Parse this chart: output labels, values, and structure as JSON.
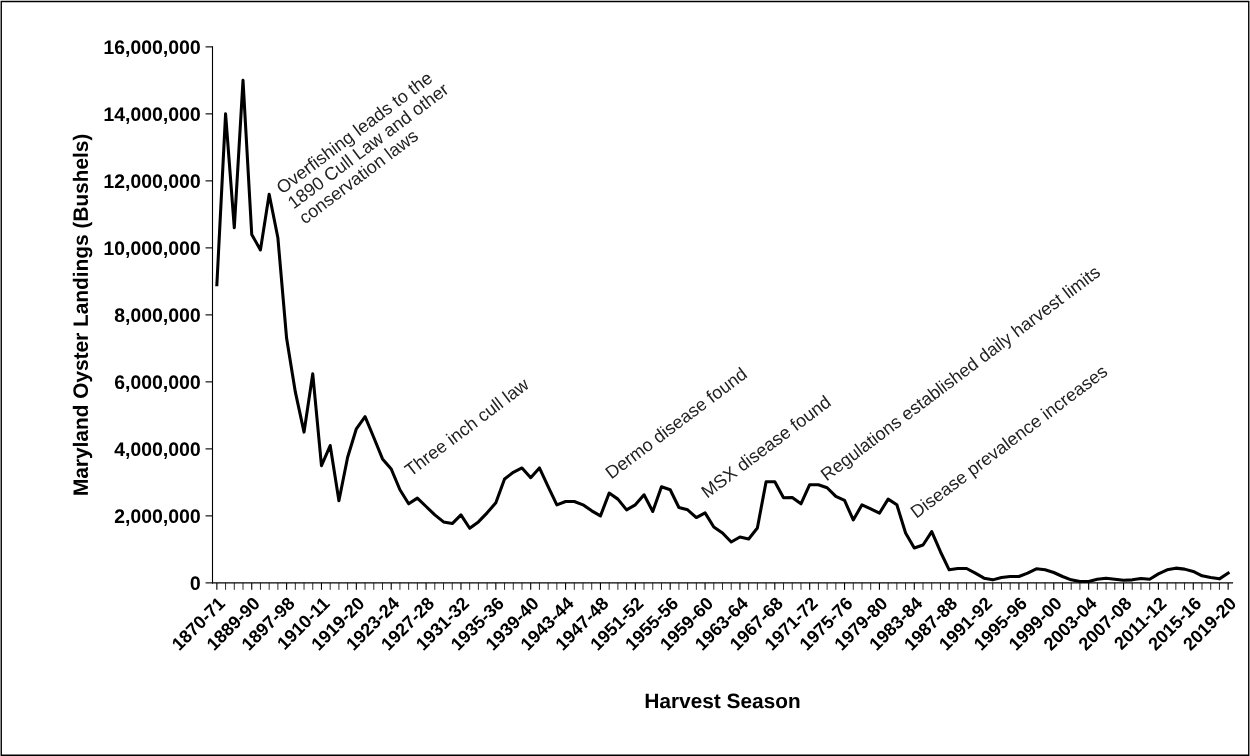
{
  "chart_data": {
    "type": "line",
    "xlabel": "Harvest Season",
    "ylabel": "Maryland Oyster Landings (Bushels)",
    "categories": [
      "1870-71",
      null,
      null,
      null,
      "1889-90",
      null,
      null,
      null,
      "1897-98",
      null,
      null,
      null,
      "1910-11",
      null,
      null,
      null,
      "1919-20",
      null,
      null,
      null,
      "1923-24",
      null,
      null,
      null,
      "1927-28",
      null,
      null,
      null,
      "1931-32",
      null,
      null,
      null,
      "1935-36",
      null,
      null,
      null,
      "1939-40",
      null,
      null,
      null,
      "1943-44",
      null,
      null,
      null,
      "1947-48",
      null,
      null,
      null,
      "1951-52",
      null,
      null,
      null,
      "1955-56",
      null,
      null,
      null,
      "1959-60",
      null,
      null,
      null,
      "1963-64",
      null,
      null,
      null,
      "1967-68",
      null,
      null,
      null,
      "1971-72",
      null,
      null,
      null,
      "1975-76",
      null,
      null,
      null,
      "1979-80",
      null,
      null,
      null,
      "1983-84",
      null,
      null,
      null,
      "1987-88",
      null,
      null,
      null,
      "1991-92",
      null,
      null,
      null,
      "1995-96",
      null,
      null,
      null,
      "1999-00",
      null,
      null,
      null,
      "2003-04",
      null,
      null,
      null,
      "2007-08",
      null,
      null,
      null,
      "2011-12",
      null,
      null,
      null,
      "2015-16",
      null,
      null,
      null,
      "2019-20"
    ],
    "series": [
      {
        "color": "#000000",
        "values": [
          8900000,
          14000000,
          10600000,
          15000000,
          10400000,
          9940000,
          11600000,
          10300000,
          7300000,
          5700000,
          4500000,
          6240000,
          3500000,
          4100000,
          2450000,
          3750000,
          4600000,
          4960000,
          4340000,
          3700000,
          3400000,
          2780000,
          2360000,
          2530000,
          2280000,
          2030000,
          1820000,
          1770000,
          2030000,
          1630000,
          1820000,
          2090000,
          2390000,
          3100000,
          3300000,
          3430000,
          3140000,
          3430000,
          2870000,
          2330000,
          2430000,
          2430000,
          2330000,
          2150000,
          2000000,
          2680000,
          2500000,
          2180000,
          2330000,
          2630000,
          2130000,
          2870000,
          2780000,
          2250000,
          2180000,
          1950000,
          2090000,
          1670000,
          1490000,
          1220000,
          1370000,
          1310000,
          1640000,
          3020000,
          3020000,
          2540000,
          2550000,
          2360000,
          2930000,
          2930000,
          2840000,
          2580000,
          2460000,
          1880000,
          2330000,
          2210000,
          2080000,
          2500000,
          2330000,
          1490000,
          1040000,
          1130000,
          1530000,
          930000,
          390000,
          430000,
          430000,
          290000,
          140000,
          90000,
          160000,
          190000,
          190000,
          290000,
          420000,
          390000,
          310000,
          190000,
          90000,
          40000,
          40000,
          110000,
          140000,
          110000,
          80000,
          90000,
          130000,
          110000,
          270000,
          390000,
          440000,
          410000,
          340000,
          210000,
          160000,
          120000,
          290000
        ]
      }
    ],
    "ylim": [
      0,
      16000000
    ],
    "yticks": [
      0,
      {
        "value": 2000000,
        "label": "2,000,000"
      },
      {
        "value": 4000000,
        "label": "4,000,000"
      },
      {
        "value": 6000000,
        "label": "6,000,000"
      },
      {
        "value": 8000000,
        "label": "8,000,000"
      },
      {
        "value": 10000000,
        "label": "10,000,000"
      },
      {
        "value": 12000000,
        "label": "12,000,000"
      },
      {
        "value": 14000000,
        "label": "14,000,000"
      },
      {
        "value": 16000000,
        "label": "16,000,000"
      }
    ],
    "grid": false,
    "marker": "none",
    "line_style": "solid",
    "annotations": [
      "Overfishing leads to the\n1890 Cull Law and other\nconservation laws",
      "Three inch cull law",
      "Dermo disease found",
      "MSX disease found",
      "Regulations established daily harvest limits",
      "Disease prevalence increases"
    ]
  }
}
